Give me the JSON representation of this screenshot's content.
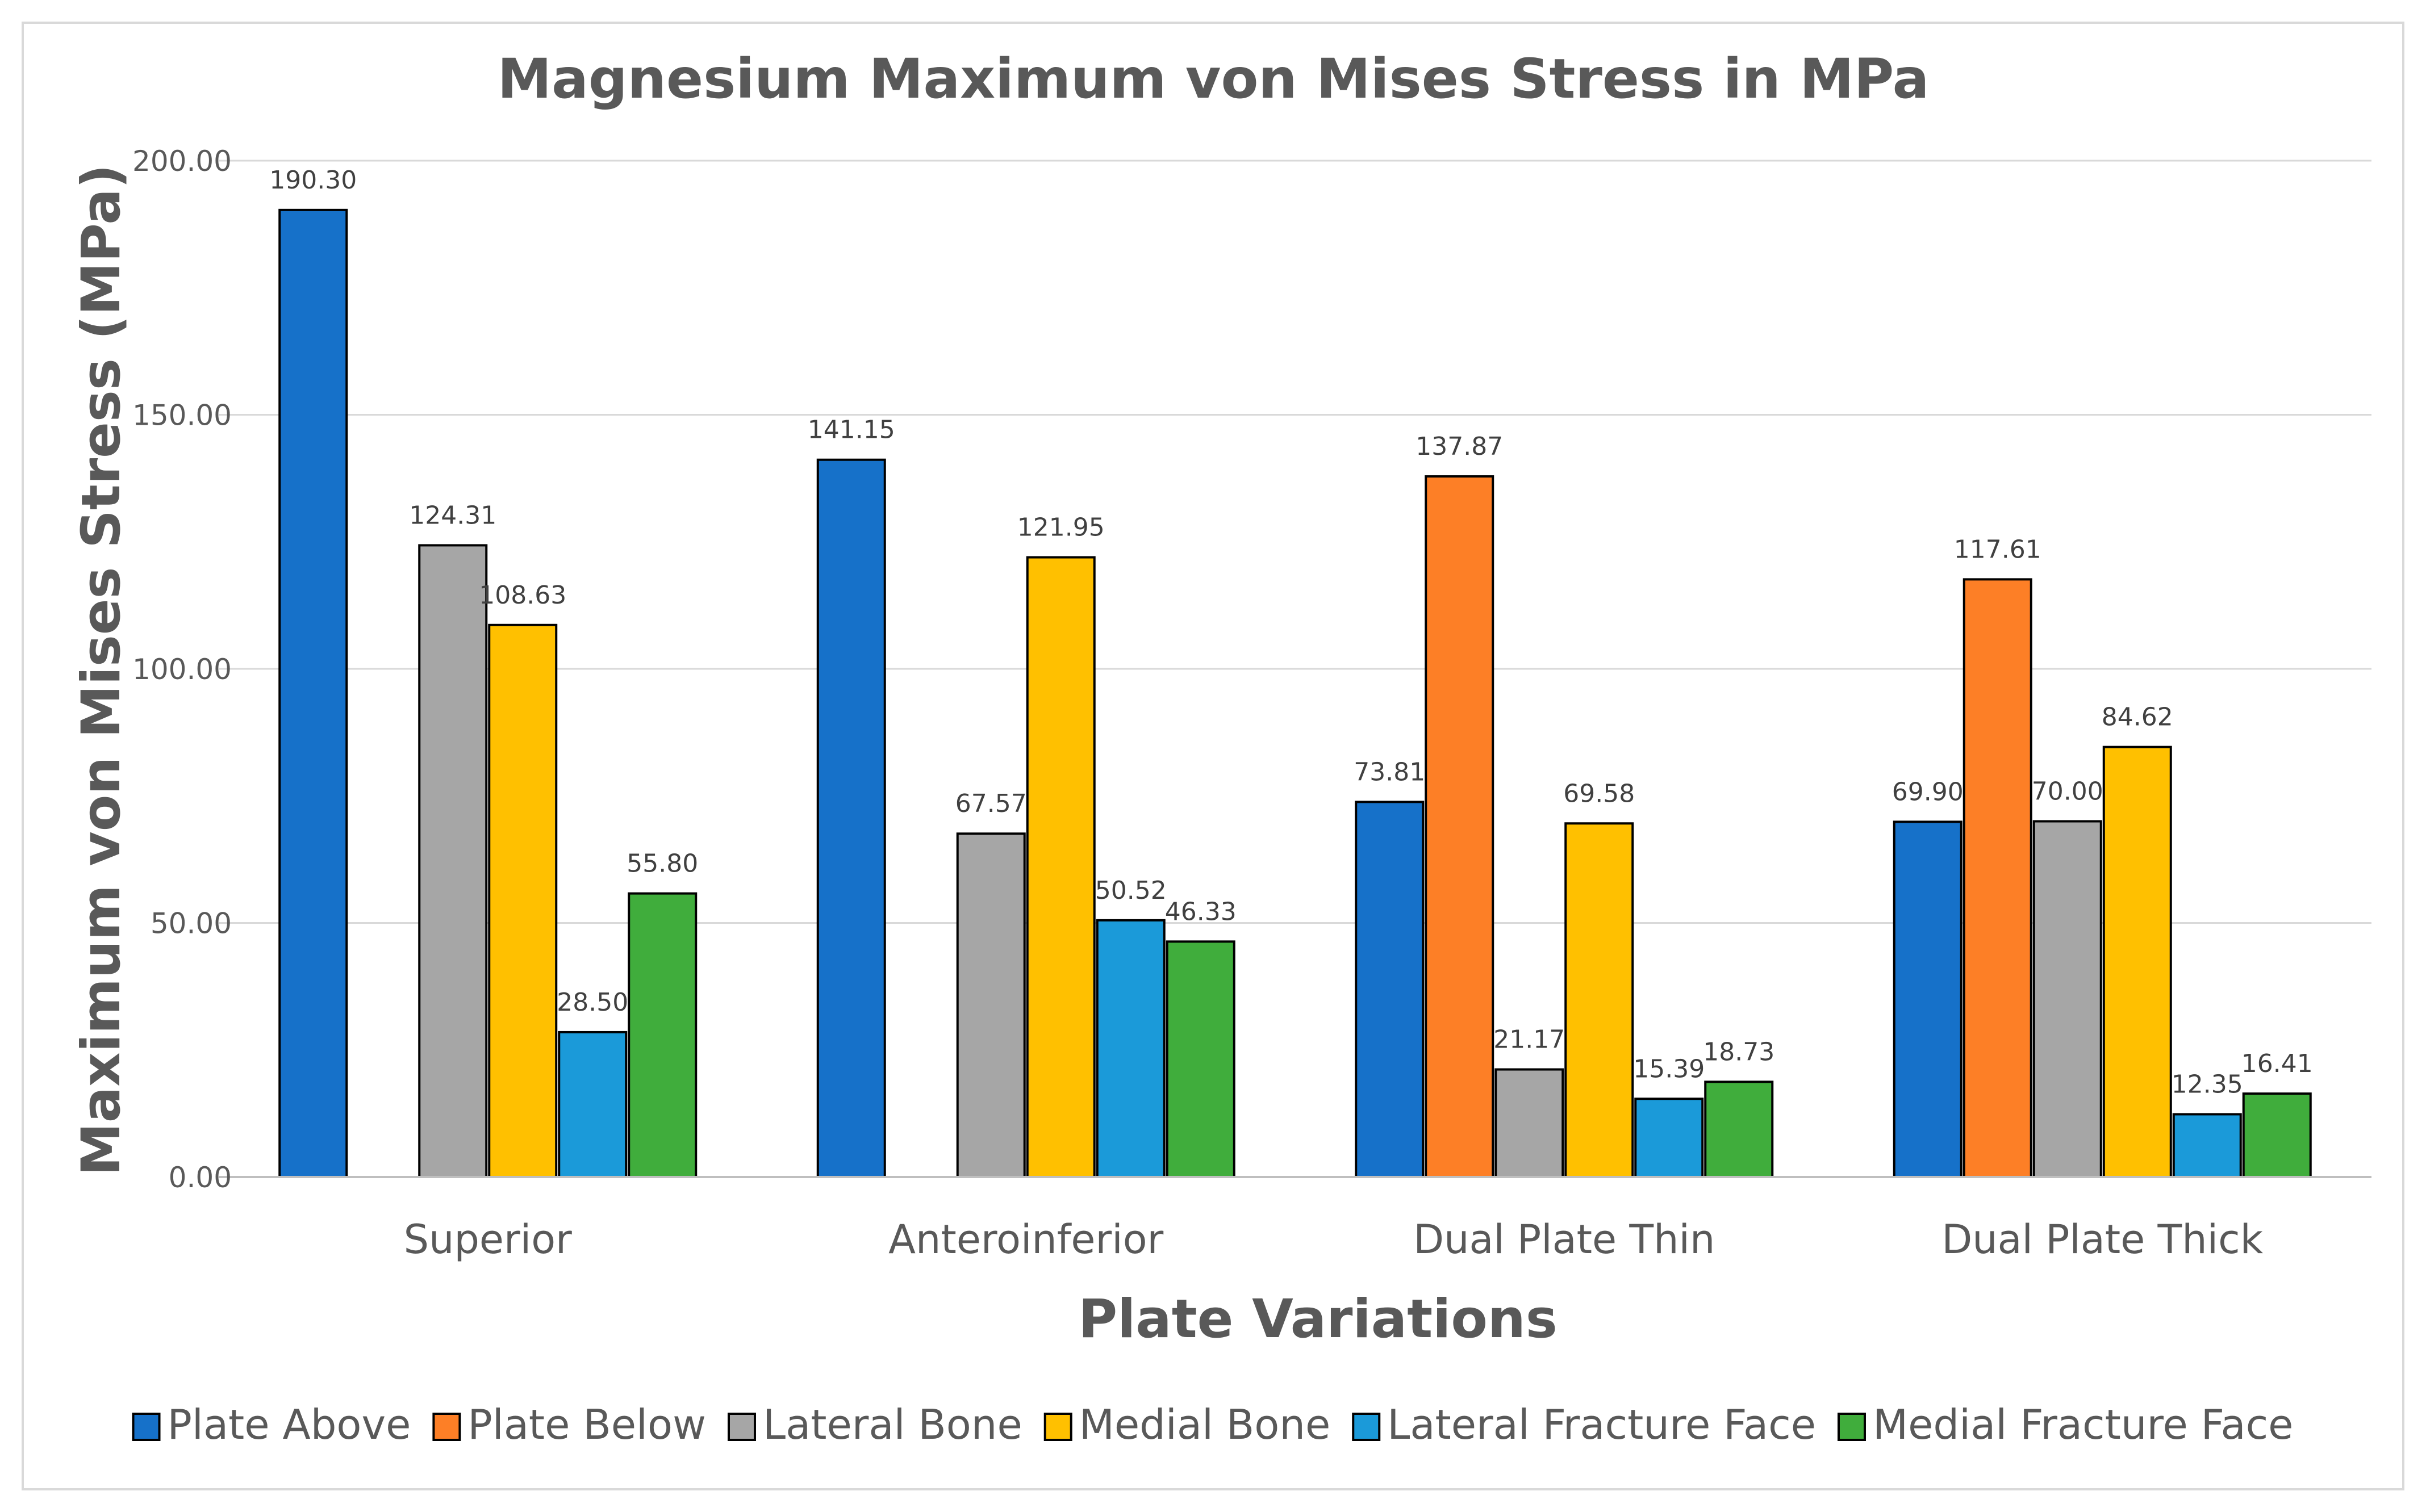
{
  "chart_data": {
    "type": "bar",
    "title": "Magnesium Maximum von Mises Stress in MPa",
    "xlabel": "Plate Variations",
    "ylabel": "Maximum von Mises Stress (MPa)",
    "ylim": [
      0,
      200
    ],
    "yticks": [
      "0.00",
      "50.00",
      "100.00",
      "150.00",
      "200.00"
    ],
    "grid": true,
    "legend_position": "bottom",
    "categories": [
      "Superior",
      "Anteroinferior",
      "Dual Plate Thin",
      "Dual Plate Thick"
    ],
    "series": [
      {
        "name": "Plate Above",
        "color": "#1671c9",
        "values": [
          190.3,
          141.15,
          73.81,
          69.9
        ],
        "labels": [
          "190.30",
          "141.15",
          "73.81",
          "69.90"
        ]
      },
      {
        "name": "Plate Below",
        "color": "#fd7f26",
        "values": [
          null,
          null,
          137.87,
          117.61
        ],
        "labels": [
          "",
          "",
          "137.87",
          "117.61"
        ]
      },
      {
        "name": "Lateral Bone",
        "color": "#a6a6a6",
        "values": [
          124.31,
          67.57,
          21.17,
          70.0
        ],
        "labels": [
          "124.31",
          "67.57",
          "21.17",
          "70.00"
        ]
      },
      {
        "name": "Medial Bone",
        "color": "#ffc000",
        "values": [
          108.63,
          121.95,
          69.58,
          84.62
        ],
        "labels": [
          "108.63",
          "121.95",
          "69.58",
          "84.62"
        ]
      },
      {
        "name": "Lateral Fracture Face",
        "color": "#1b9ad9",
        "values": [
          28.5,
          50.52,
          15.39,
          12.35
        ],
        "labels": [
          "28.50",
          "50.52",
          "15.39",
          "12.35"
        ]
      },
      {
        "name": "Medial Fracture Face",
        "color": "#40ad3c",
        "values": [
          55.8,
          46.33,
          18.73,
          16.41
        ],
        "labels": [
          "55.80",
          "46.33",
          "18.73",
          "16.41"
        ]
      }
    ]
  }
}
